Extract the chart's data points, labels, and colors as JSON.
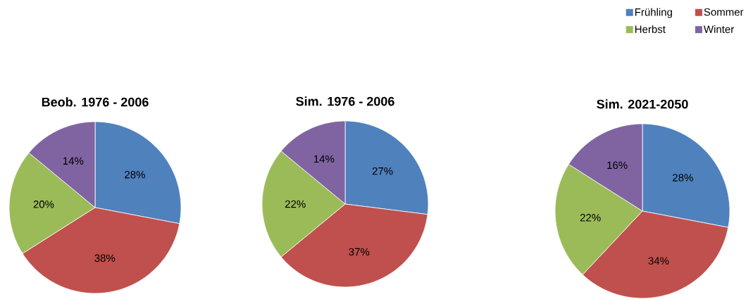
{
  "chart_data": [
    {
      "type": "pie",
      "title": "Beob. 1976 - 2006",
      "categories": [
        null,
        null,
        null,
        null
      ],
      "values": [
        28,
        38,
        20,
        14
      ],
      "value_labels": [
        "28%",
        "38%",
        "20%",
        "14%"
      ],
      "colors": [
        "#4f81bd",
        "#c0504d",
        "#9bbb59",
        "#8064a2"
      ]
    },
    {
      "type": "pie",
      "title": "Sim. 1976 - 2006",
      "categories": [
        null,
        null,
        null,
        null
      ],
      "values": [
        27,
        37,
        22,
        14
      ],
      "value_labels": [
        "27%",
        "37%",
        "22%",
        "14%"
      ],
      "colors": [
        "#4f81bd",
        "#c0504d",
        "#9bbb59",
        "#8064a2"
      ]
    },
    {
      "type": "pie",
      "title": "Sim. 2021-2050",
      "categories": [
        "Frühling",
        "Sommer",
        "Herbst",
        "Winter"
      ],
      "values": [
        28,
        34,
        22,
        16
      ],
      "value_labels": [
        "28%",
        "34%",
        "22%",
        "16%"
      ],
      "colors": [
        "#4f81bd",
        "#c0504d",
        "#9bbb59",
        "#8064a2"
      ],
      "legend": "top right"
    }
  ]
}
